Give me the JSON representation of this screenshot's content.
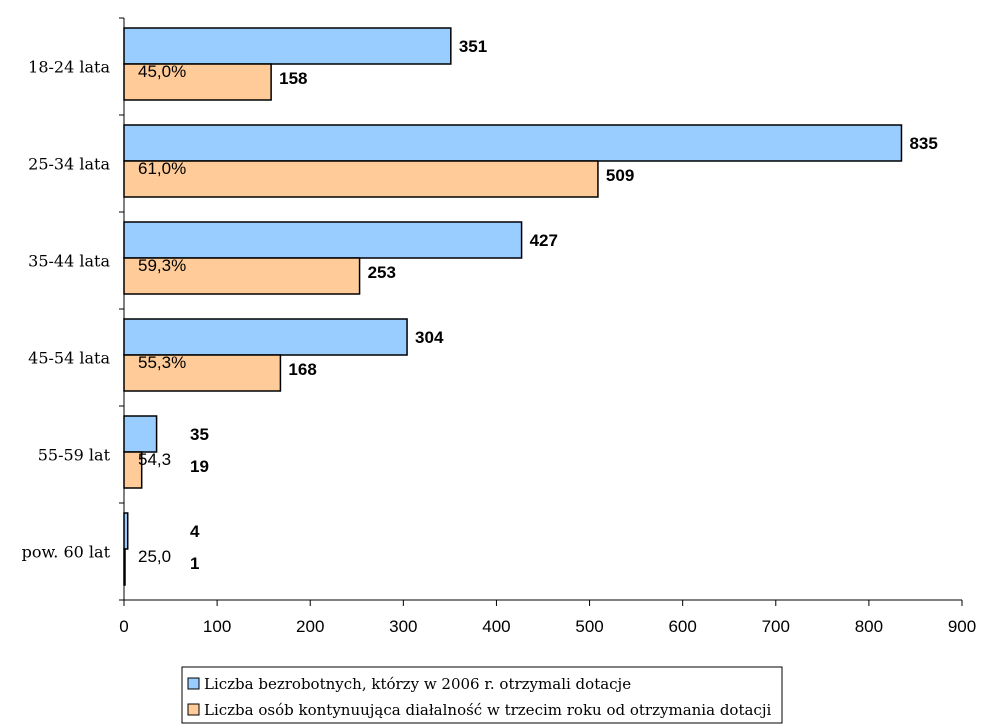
{
  "chart_data": {
    "type": "bar",
    "orientation": "horizontal",
    "categories": [
      "18-24 lata",
      "25-34 lata",
      "35-44 lata",
      "45-54 lata",
      "55-59 lat",
      "pow. 60 lat"
    ],
    "series": [
      {
        "name": "Liczba bezrobotnych, którzy w 2006 r. otrzymali dotacje",
        "values": [
          351,
          835,
          427,
          304,
          35,
          4
        ],
        "color": "#99ccff"
      },
      {
        "name": "Liczba osób kontynuująca diałalność w trzecim roku od otrzymania dotacji",
        "values": [
          158,
          509,
          253,
          168,
          19,
          1
        ],
        "color": "#ffcc99",
        "percent_labels": [
          "45,0%",
          "61,0%",
          "59,3%",
          "55,3%",
          "54,3",
          "25,0"
        ]
      }
    ],
    "xlim": [
      0,
      900
    ],
    "xticks": [
      0,
      100,
      200,
      300,
      400,
      500,
      600,
      700,
      800,
      900
    ],
    "grid": false,
    "legend_position": "bottom"
  }
}
